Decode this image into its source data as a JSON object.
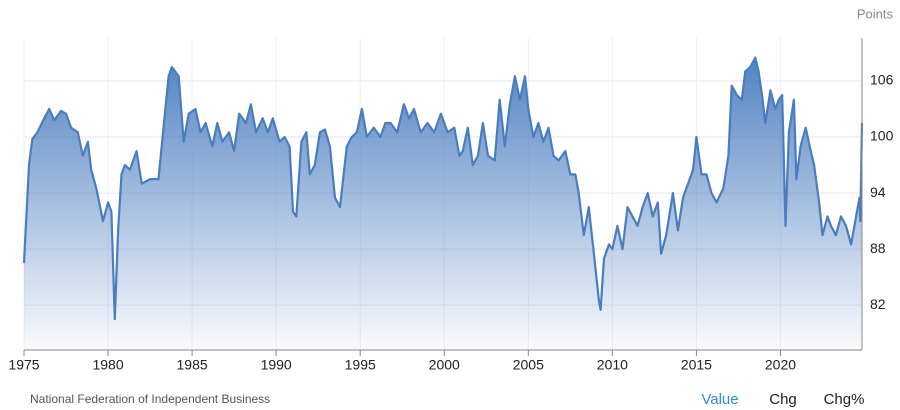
{
  "chart_data": {
    "type": "area",
    "y_unit": "Points",
    "color": "#4a7dbf",
    "grid": true,
    "source": "National Federation of Independent Business",
    "tabs": [
      "Value",
      "Chg",
      "Chg%"
    ],
    "xlim": [
      1975,
      2024.85
    ],
    "xticks": [
      1975,
      1980,
      1985,
      1990,
      1995,
      2000,
      2005,
      2010,
      2015,
      2020
    ],
    "ylim": [
      77.2,
      110.6
    ],
    "yticks": [
      82,
      88,
      94,
      100,
      106
    ],
    "x": [
      1975.0,
      1975.3,
      1975.5,
      1975.8,
      1976.2,
      1976.5,
      1976.8,
      1977.2,
      1977.5,
      1977.8,
      1978.2,
      1978.5,
      1978.8,
      1979.0,
      1979.3,
      1979.7,
      1980.0,
      1980.2,
      1980.4,
      1980.6,
      1980.8,
      1981.0,
      1981.3,
      1981.7,
      1982.0,
      1982.5,
      1983.0,
      1983.3,
      1983.6,
      1983.8,
      1984.2,
      1984.5,
      1984.8,
      1985.2,
      1985.5,
      1985.8,
      1986.2,
      1986.5,
      1986.8,
      1987.2,
      1987.5,
      1987.8,
      1988.2,
      1988.5,
      1988.8,
      1989.2,
      1989.5,
      1989.8,
      1990.2,
      1990.5,
      1990.8,
      1991.0,
      1991.2,
      1991.5,
      1991.8,
      1992.0,
      1992.3,
      1992.6,
      1992.9,
      1993.2,
      1993.5,
      1993.8,
      1994.2,
      1994.5,
      1994.8,
      1995.1,
      1995.4,
      1995.8,
      1996.2,
      1996.5,
      1996.8,
      1997.2,
      1997.6,
      1997.9,
      1998.2,
      1998.6,
      1999.0,
      1999.4,
      1999.8,
      2000.2,
      2000.6,
      2000.9,
      2001.1,
      2001.4,
      2001.7,
      2002.0,
      2002.3,
      2002.6,
      2003.0,
      2003.3,
      2003.6,
      2003.9,
      2004.2,
      2004.5,
      2004.8,
      2005.0,
      2005.3,
      2005.6,
      2005.9,
      2006.2,
      2006.5,
      2006.8,
      2007.2,
      2007.5,
      2007.8,
      2008.0,
      2008.3,
      2008.6,
      2008.9,
      2009.2,
      2009.3,
      2009.5,
      2009.8,
      2010.0,
      2010.3,
      2010.6,
      2010.9,
      2011.2,
      2011.5,
      2011.8,
      2012.1,
      2012.4,
      2012.7,
      2012.9,
      2013.2,
      2013.6,
      2013.9,
      2014.2,
      2014.5,
      2014.8,
      2015.0,
      2015.3,
      2015.6,
      2015.9,
      2016.2,
      2016.6,
      2016.9,
      2017.1,
      2017.4,
      2017.7,
      2017.9,
      2018.2,
      2018.5,
      2018.7,
      2018.9,
      2019.1,
      2019.4,
      2019.7,
      2019.9,
      2020.1,
      2020.3,
      2020.5,
      2020.8,
      2020.95,
      2021.2,
      2021.5,
      2021.8,
      2022.0,
      2022.3,
      2022.5,
      2022.8,
      2023.0,
      2023.3,
      2023.6,
      2023.9,
      2024.2,
      2024.5,
      2024.7,
      2024.75,
      2024.85
    ],
    "values": [
      86.5,
      97,
      99.8,
      100.5,
      102,
      103,
      101.8,
      102.8,
      102.5,
      101,
      100.5,
      98,
      99.5,
      96.5,
      94.5,
      91,
      93,
      92,
      80.5,
      90,
      96,
      97,
      96.5,
      98.5,
      95,
      95.5,
      95.5,
      101,
      106.5,
      107.5,
      106.5,
      99.5,
      102.5,
      103,
      100.5,
      101.5,
      99,
      101.5,
      99.5,
      100.5,
      98.5,
      102.5,
      101.5,
      103.5,
      100.5,
      102,
      100.5,
      102,
      99.5,
      100,
      99,
      92,
      91.5,
      99.5,
      100.5,
      96,
      97,
      100.5,
      100.8,
      99,
      93.5,
      92.5,
      99,
      100,
      100.5,
      103,
      100,
      101,
      100,
      101.5,
      101.5,
      100.5,
      103.5,
      102,
      103,
      100.5,
      101.5,
      100.5,
      102.5,
      100.5,
      101,
      98,
      98.5,
      101,
      97,
      98,
      101.5,
      98,
      97.5,
      104,
      99,
      103.5,
      106.5,
      104,
      106.5,
      103,
      100,
      101.5,
      99.5,
      101,
      98,
      97.5,
      98.5,
      96,
      96,
      94,
      89.5,
      92.5,
      87.5,
      82.5,
      81.5,
      87,
      88.5,
      88,
      90.5,
      88,
      92.5,
      91.5,
      90.5,
      92.5,
      94,
      91.5,
      93,
      87.5,
      89.5,
      94,
      90,
      93.5,
      95,
      96.5,
      100,
      96,
      96,
      94,
      93,
      94.5,
      98,
      105.5,
      104.5,
      104,
      107,
      107.5,
      108.5,
      107,
      104.5,
      101.5,
      105,
      103,
      104,
      104.5,
      90.5,
      100.5,
      104,
      95.5,
      99,
      101,
      98.5,
      97,
      93,
      89.5,
      91.5,
      90.5,
      89.5,
      91.5,
      90.5,
      88.5,
      91.5,
      93.5,
      91,
      101.5
    ]
  }
}
